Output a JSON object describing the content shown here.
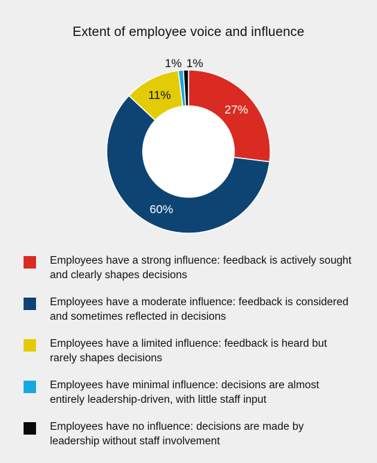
{
  "chart_data": {
    "type": "pie",
    "style": "donut",
    "title": "Extent of employee voice and influence",
    "series": [
      {
        "name": "Employees have a strong influence: feedback is actively sought and clearly shapes decisions",
        "value": 27,
        "label": "27%",
        "color": "#d92b22"
      },
      {
        "name": "Employees have a moderate influence: feedback is considered and sometimes reflected in decisions",
        "value": 60,
        "label": "60%",
        "color": "#0d4473"
      },
      {
        "name": "Employees have a limited influence: feedback is heard but rarely shapes decisions",
        "value": 11,
        "label": "11%",
        "color": "#e3cc06"
      },
      {
        "name": "Employees have minimal influence: decisions are almost entirely leadership-driven, with little staff input",
        "value": 1,
        "label": "1%",
        "color": "#16a8e0"
      },
      {
        "name": "Employees have no influence: decisions are made by leadership without staff involvement",
        "value": 1,
        "label": "1%",
        "color": "#0a0a0a"
      }
    ],
    "legend_position": "bottom"
  }
}
